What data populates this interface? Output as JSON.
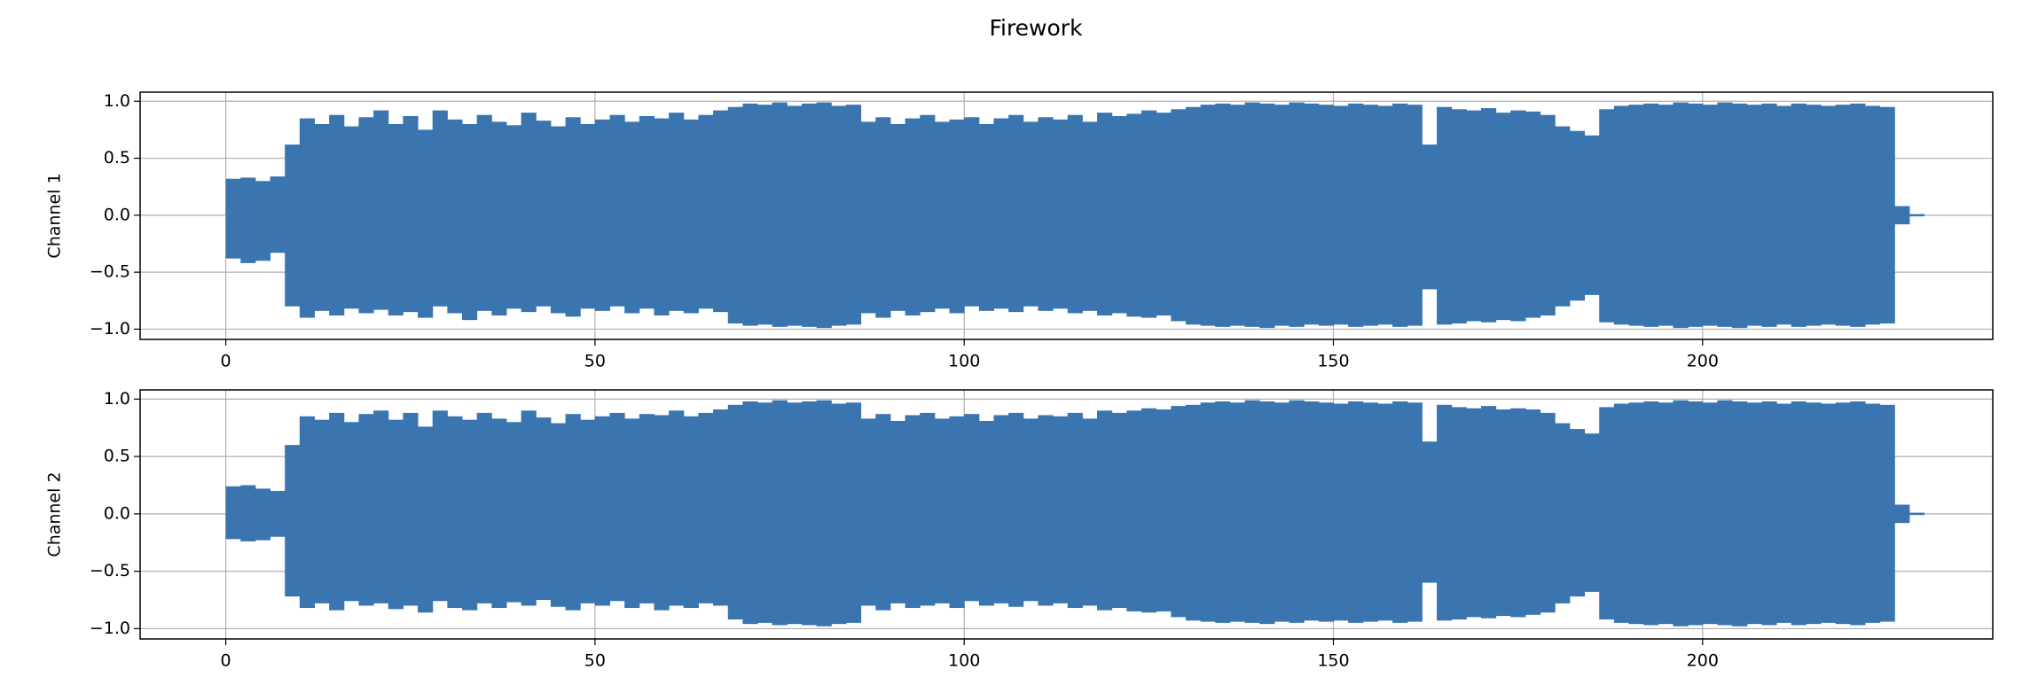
{
  "chart_data": {
    "type": "waveform",
    "title": "Firework",
    "color": "#3a75af",
    "grid": true,
    "xlim": [
      -11.6,
      239.3
    ],
    "xticks": [
      0,
      50,
      100,
      150,
      200
    ],
    "ylim": [
      -1.09,
      1.08
    ],
    "yticks": [
      {
        "value": -1,
        "label": "−1.0"
      },
      {
        "value": -0.5,
        "label": "−0.5"
      },
      {
        "value": 0,
        "label": "0.0"
      },
      0.5,
      {
        "value": 1,
        "label": "1.0"
      }
    ],
    "x": [
      0,
      2,
      4,
      6,
      8,
      10,
      12,
      14,
      16,
      18,
      20,
      22,
      24,
      26,
      28,
      30,
      32,
      34,
      36,
      38,
      40,
      42,
      44,
      46,
      48,
      50,
      52,
      54,
      56,
      58,
      60,
      62,
      64,
      66,
      68,
      70,
      72,
      74,
      76,
      78,
      80,
      82,
      84,
      86,
      88,
      90,
      92,
      94,
      96,
      98,
      100,
      102,
      104,
      106,
      108,
      110,
      112,
      114,
      116,
      118,
      120,
      122,
      124,
      126,
      128,
      130,
      132,
      134,
      136,
      138,
      140,
      142,
      144,
      146,
      148,
      150,
      152,
      154,
      156,
      158,
      160,
      162,
      164,
      166,
      168,
      170,
      172,
      174,
      176,
      178,
      180,
      182,
      184,
      186,
      188,
      190,
      192,
      194,
      196,
      198,
      200,
      202,
      204,
      206,
      208,
      210,
      212,
      214,
      216,
      218,
      220,
      222,
      224,
      226,
      228
    ],
    "panels": [
      {
        "ylabel": "Channel 1",
        "upper": [
          0.32,
          0.33,
          0.3,
          0.34,
          0.62,
          0.85,
          0.8,
          0.88,
          0.78,
          0.86,
          0.92,
          0.8,
          0.87,
          0.75,
          0.92,
          0.84,
          0.8,
          0.88,
          0.82,
          0.79,
          0.9,
          0.83,
          0.78,
          0.86,
          0.8,
          0.84,
          0.88,
          0.82,
          0.87,
          0.85,
          0.9,
          0.84,
          0.88,
          0.92,
          0.95,
          0.98,
          0.97,
          0.99,
          0.96,
          0.98,
          0.99,
          0.96,
          0.97,
          0.82,
          0.86,
          0.8,
          0.85,
          0.88,
          0.82,
          0.84,
          0.86,
          0.8,
          0.85,
          0.88,
          0.82,
          0.86,
          0.84,
          0.88,
          0.82,
          0.9,
          0.87,
          0.89,
          0.92,
          0.9,
          0.93,
          0.95,
          0.97,
          0.98,
          0.97,
          0.99,
          0.98,
          0.97,
          0.99,
          0.98,
          0.97,
          0.96,
          0.98,
          0.97,
          0.96,
          0.98,
          0.97,
          0.62,
          0.95,
          0.93,
          0.92,
          0.94,
          0.9,
          0.92,
          0.91,
          0.88,
          0.78,
          0.74,
          0.7,
          0.93,
          0.96,
          0.97,
          0.98,
          0.97,
          0.99,
          0.98,
          0.97,
          0.99,
          0.98,
          0.97,
          0.98,
          0.96,
          0.98,
          0.97,
          0.96,
          0.97,
          0.98,
          0.96,
          0.95,
          0.08,
          0.01
        ],
        "lower": [
          -0.38,
          -0.42,
          -0.4,
          -0.33,
          -0.8,
          -0.9,
          -0.84,
          -0.88,
          -0.82,
          -0.86,
          -0.83,
          -0.88,
          -0.85,
          -0.9,
          -0.8,
          -0.86,
          -0.92,
          -0.84,
          -0.88,
          -0.82,
          -0.85,
          -0.8,
          -0.86,
          -0.89,
          -0.82,
          -0.84,
          -0.8,
          -0.86,
          -0.82,
          -0.88,
          -0.84,
          -0.86,
          -0.82,
          -0.85,
          -0.95,
          -0.97,
          -0.96,
          -0.98,
          -0.97,
          -0.98,
          -0.99,
          -0.97,
          -0.96,
          -0.86,
          -0.9,
          -0.84,
          -0.88,
          -0.85,
          -0.82,
          -0.86,
          -0.8,
          -0.84,
          -0.82,
          -0.85,
          -0.8,
          -0.84,
          -0.82,
          -0.86,
          -0.84,
          -0.88,
          -0.86,
          -0.89,
          -0.9,
          -0.88,
          -0.93,
          -0.96,
          -0.97,
          -0.98,
          -0.97,
          -0.98,
          -0.99,
          -0.97,
          -0.98,
          -0.96,
          -0.97,
          -0.96,
          -0.98,
          -0.97,
          -0.96,
          -0.98,
          -0.97,
          -0.65,
          -0.96,
          -0.95,
          -0.93,
          -0.94,
          -0.92,
          -0.93,
          -0.9,
          -0.88,
          -0.8,
          -0.75,
          -0.7,
          -0.94,
          -0.96,
          -0.97,
          -0.98,
          -0.97,
          -0.99,
          -0.98,
          -0.97,
          -0.98,
          -0.99,
          -0.97,
          -0.98,
          -0.96,
          -0.98,
          -0.97,
          -0.96,
          -0.97,
          -0.98,
          -0.96,
          -0.95,
          -0.08,
          -0.01
        ]
      },
      {
        "ylabel": "Channel 2",
        "upper": [
          0.24,
          0.25,
          0.22,
          0.2,
          0.6,
          0.85,
          0.82,
          0.88,
          0.8,
          0.87,
          0.9,
          0.82,
          0.88,
          0.76,
          0.9,
          0.85,
          0.82,
          0.88,
          0.83,
          0.8,
          0.9,
          0.84,
          0.79,
          0.87,
          0.82,
          0.85,
          0.88,
          0.83,
          0.87,
          0.86,
          0.9,
          0.85,
          0.88,
          0.91,
          0.95,
          0.98,
          0.97,
          0.99,
          0.97,
          0.98,
          0.99,
          0.96,
          0.97,
          0.83,
          0.87,
          0.81,
          0.86,
          0.88,
          0.83,
          0.85,
          0.87,
          0.81,
          0.86,
          0.88,
          0.83,
          0.86,
          0.85,
          0.88,
          0.83,
          0.9,
          0.88,
          0.9,
          0.92,
          0.91,
          0.94,
          0.95,
          0.97,
          0.98,
          0.97,
          0.99,
          0.98,
          0.97,
          0.99,
          0.98,
          0.97,
          0.96,
          0.98,
          0.97,
          0.96,
          0.98,
          0.97,
          0.63,
          0.95,
          0.93,
          0.92,
          0.94,
          0.91,
          0.92,
          0.91,
          0.88,
          0.79,
          0.74,
          0.7,
          0.93,
          0.96,
          0.97,
          0.98,
          0.97,
          0.99,
          0.98,
          0.97,
          0.99,
          0.98,
          0.97,
          0.98,
          0.96,
          0.98,
          0.97,
          0.96,
          0.97,
          0.98,
          0.96,
          0.95,
          0.08,
          0.01
        ],
        "lower": [
          -0.22,
          -0.24,
          -0.23,
          -0.2,
          -0.72,
          -0.82,
          -0.78,
          -0.84,
          -0.76,
          -0.8,
          -0.78,
          -0.83,
          -0.8,
          -0.86,
          -0.76,
          -0.82,
          -0.84,
          -0.78,
          -0.82,
          -0.77,
          -0.8,
          -0.75,
          -0.81,
          -0.84,
          -0.78,
          -0.8,
          -0.76,
          -0.82,
          -0.78,
          -0.84,
          -0.8,
          -0.82,
          -0.78,
          -0.8,
          -0.92,
          -0.96,
          -0.95,
          -0.97,
          -0.96,
          -0.97,
          -0.98,
          -0.96,
          -0.95,
          -0.8,
          -0.84,
          -0.78,
          -0.82,
          -0.8,
          -0.78,
          -0.82,
          -0.76,
          -0.8,
          -0.78,
          -0.81,
          -0.76,
          -0.8,
          -0.78,
          -0.82,
          -0.8,
          -0.84,
          -0.82,
          -0.85,
          -0.86,
          -0.85,
          -0.9,
          -0.93,
          -0.94,
          -0.95,
          -0.94,
          -0.95,
          -0.96,
          -0.94,
          -0.95,
          -0.93,
          -0.94,
          -0.93,
          -0.95,
          -0.94,
          -0.93,
          -0.95,
          -0.94,
          -0.6,
          -0.93,
          -0.92,
          -0.9,
          -0.91,
          -0.89,
          -0.9,
          -0.88,
          -0.86,
          -0.78,
          -0.72,
          -0.68,
          -0.92,
          -0.95,
          -0.96,
          -0.97,
          -0.96,
          -0.98,
          -0.97,
          -0.96,
          -0.97,
          -0.98,
          -0.96,
          -0.97,
          -0.95,
          -0.97,
          -0.96,
          -0.95,
          -0.96,
          -0.97,
          -0.95,
          -0.94,
          -0.08,
          -0.01
        ]
      }
    ]
  }
}
